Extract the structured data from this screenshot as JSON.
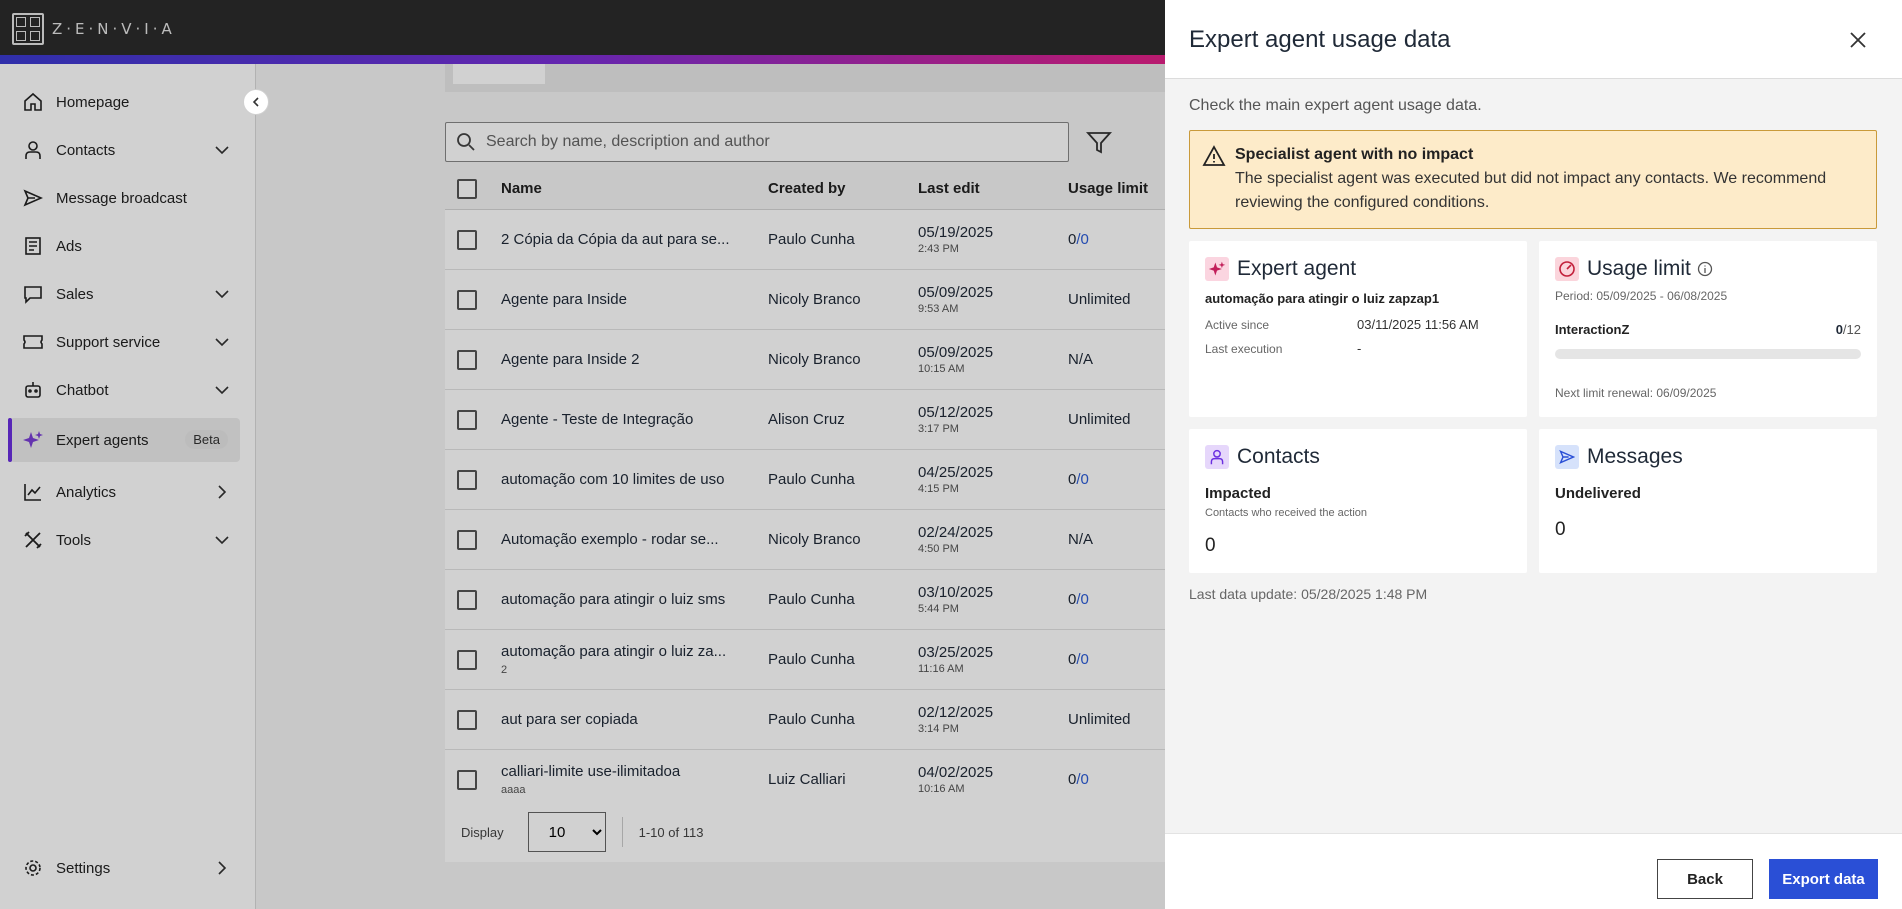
{
  "brand": {
    "name": "Z·E·N·V·I·A"
  },
  "sidebar": {
    "items": [
      {
        "label": "Homepage",
        "icon": "home-icon"
      },
      {
        "label": "Contacts",
        "icon": "user-icon"
      },
      {
        "label": "Message broadcast",
        "icon": "send-icon"
      },
      {
        "label": "Ads",
        "icon": "document-icon"
      },
      {
        "label": "Sales",
        "icon": "chat-icon"
      },
      {
        "label": "Support service",
        "icon": "ticket-icon"
      },
      {
        "label": "Chatbot",
        "icon": "robot-icon"
      },
      {
        "label": "Expert agents",
        "icon": "sparkle-icon",
        "badge": "Beta"
      },
      {
        "label": "Analytics",
        "icon": "chart-icon"
      },
      {
        "label": "Tools",
        "icon": "tools-icon"
      },
      {
        "label": "Settings",
        "icon": "gear-icon"
      }
    ]
  },
  "search": {
    "placeholder": "Search by name, description and author"
  },
  "table": {
    "headers": {
      "name": "Name",
      "created_by": "Created by",
      "last_edit": "Last edit",
      "usage": "Usage limit"
    },
    "rows": [
      {
        "name": "2 Cópia da Cópia da aut para se...",
        "sub": "",
        "by": "Paulo Cunha",
        "date": "05/19/2025",
        "time": "2:43 PM",
        "usage_used": "0",
        "usage_total": "/0"
      },
      {
        "name": "Agente para Inside",
        "sub": "",
        "by": "Nicoly Branco",
        "date": "05/09/2025",
        "time": "9:53 AM",
        "usage_used": "Unlimited",
        "usage_total": ""
      },
      {
        "name": "Agente para Inside 2",
        "sub": "",
        "by": "Nicoly Branco",
        "date": "05/09/2025",
        "time": "10:15 AM",
        "usage_used": "N/A",
        "usage_total": ""
      },
      {
        "name": "Agente - Teste de Integração",
        "sub": "",
        "by": "Alison Cruz",
        "date": "05/12/2025",
        "time": "3:17 PM",
        "usage_used": "Unlimited",
        "usage_total": ""
      },
      {
        "name": "automação com 10 limites de uso",
        "sub": "",
        "by": "Paulo Cunha",
        "date": "04/25/2025",
        "time": "4:15 PM",
        "usage_used": "0",
        "usage_total": "/0"
      },
      {
        "name": "Automação exemplo - rodar se...",
        "sub": "",
        "by": "Nicoly Branco",
        "date": "02/24/2025",
        "time": "4:50 PM",
        "usage_used": "N/A",
        "usage_total": ""
      },
      {
        "name": "automação para atingir o luiz sms",
        "sub": "",
        "by": "Paulo Cunha",
        "date": "03/10/2025",
        "time": "5:44 PM",
        "usage_used": "0",
        "usage_total": "/0"
      },
      {
        "name": "automação para atingir o luiz za...",
        "sub": "2",
        "by": "Paulo Cunha",
        "date": "03/25/2025",
        "time": "11:16 AM",
        "usage_used": "0",
        "usage_total": "/0"
      },
      {
        "name": "aut para ser copiada",
        "sub": "",
        "by": "Paulo Cunha",
        "date": "02/12/2025",
        "time": "3:14 PM",
        "usage_used": "Unlimited",
        "usage_total": ""
      },
      {
        "name": "calliari-limite use-ilimitadoa",
        "sub": "aaaa",
        "by": "Luiz Calliari",
        "date": "04/02/2025",
        "time": "10:16 AM",
        "usage_used": "0",
        "usage_total": "/0"
      }
    ]
  },
  "pager": {
    "label": "Display",
    "page_size": "10",
    "range": "1-10 of 113"
  },
  "drawer": {
    "title": "Expert agent usage data",
    "intro": "Check the main expert agent usage data.",
    "alert": {
      "title": "Specialist agent with no impact",
      "body": "The specialist agent was executed but did not impact any contacts. We recommend reviewing the configured conditions."
    },
    "expert": {
      "title": "Expert agent",
      "name": "automação para atingir o luiz zapzap1",
      "active_label": "Active since",
      "active_value": "03/11/2025 11:56 AM",
      "last_label": "Last execution",
      "last_value": "-"
    },
    "usage": {
      "title": "Usage limit",
      "period": "Period: 05/09/2025 - 06/08/2025",
      "item": "InteractionZ",
      "used": "0",
      "total": "/12",
      "progress": 0,
      "renewal": "Next limit renewal: 06/09/2025"
    },
    "contacts": {
      "title": "Contacts",
      "label": "Impacted",
      "sub": "Contacts who received the action",
      "value": "0"
    },
    "messages": {
      "title": "Messages",
      "label": "Undelivered",
      "value": "0"
    },
    "last_update": "Last data update: 05/28/2025 1:48 PM",
    "back_label": "Back",
    "export_label": "Export data"
  }
}
